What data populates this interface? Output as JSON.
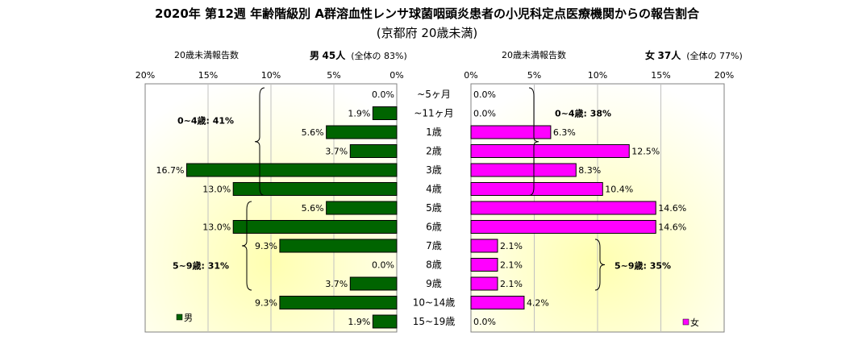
{
  "title": "2020年 第12週 年齢階級別 A群溶血性レンサ球菌咽頭炎患者の小児科定点医療機関からの報告割合",
  "subtitle": "(京都府 20歳未満)",
  "left_header": {
    "label": "20歳未満報告数",
    "sex": "男",
    "count": "45人",
    "share_prefix": "(全体の",
    "share": "83%)"
  },
  "right_header": {
    "label": "20歳未満報告数",
    "sex": "女",
    "count": "37人",
    "share_prefix": "(全体の",
    "share": "77%)"
  },
  "chart_data": {
    "type": "bar",
    "orientation": "horizontal",
    "categories": [
      "~5ヶ月",
      "~11ヶ月",
      "1歳",
      "2歳",
      "3歳",
      "4歳",
      "5歳",
      "6歳",
      "7歳",
      "8歳",
      "9歳",
      "10~14歳",
      "15~19歳"
    ],
    "series": [
      {
        "name": "男",
        "color": "#006400",
        "values": [
          0.0,
          1.9,
          5.6,
          3.7,
          16.7,
          13.0,
          5.6,
          13.0,
          9.3,
          0.0,
          3.7,
          9.3,
          1.9
        ]
      },
      {
        "name": "女",
        "color": "#ff00ff",
        "values": [
          0.0,
          0.0,
          6.3,
          12.5,
          8.3,
          10.4,
          14.6,
          14.6,
          2.1,
          2.1,
          2.1,
          4.2,
          0.0
        ]
      }
    ],
    "xlim": [
      0,
      20
    ],
    "x_ticks": [
      "20%",
      "15%",
      "10%",
      "5%",
      "0%"
    ],
    "x_ticks_right": [
      "0%",
      "5%",
      "10%",
      "15%",
      "20%"
    ],
    "value_suffix": "%",
    "grid": true,
    "annotations": {
      "male_0_4": "0~4歳: 41%",
      "male_5_9": "5~9歳: 31%",
      "female_0_4": "0~4歳: 38%",
      "female_5_9": "5~9歳: 35%"
    },
    "legend": {
      "male": "男",
      "female": "女"
    }
  }
}
